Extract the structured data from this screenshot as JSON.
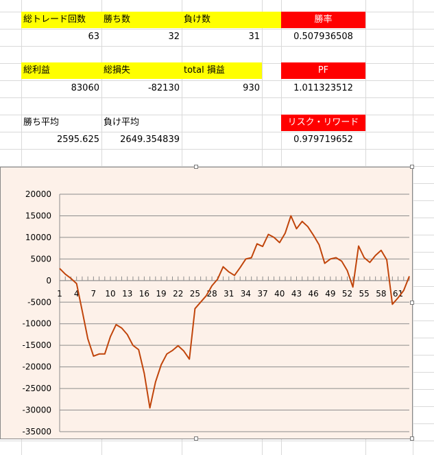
{
  "sheet": {
    "row1": {
      "total_trades_label": "総トレード回数",
      "wins_label": "勝ち数",
      "losses_label": "負け数",
      "win_rate_label": "勝率"
    },
    "row2": {
      "total_trades": "63",
      "wins": "32",
      "losses": "31",
      "win_rate": "0.507936508"
    },
    "row4": {
      "gross_profit_label": "総利益",
      "gross_loss_label": "総損失",
      "total_pl_label": "total 損益",
      "pf_label": "PF"
    },
    "row5": {
      "gross_profit": "83060",
      "gross_loss": "-82130",
      "total_pl": "930",
      "pf": "1.011323512"
    },
    "row7": {
      "avg_win_label": "勝ち平均",
      "avg_loss_label": "負け平均",
      "risk_reward_label": "リスク・リワード"
    },
    "row8": {
      "avg_win": "2595.625",
      "avg_loss": "2649.354839",
      "risk_reward": "0.979719652"
    },
    "colors": {
      "header_yellow": "#ffff00",
      "header_red": "#ff0000",
      "line": "#c0440a",
      "chart_bg": "#fdf1e9"
    }
  },
  "chart_data": {
    "type": "line",
    "title": "",
    "xlabel": "",
    "ylabel": "",
    "ylim": [
      -35000,
      20000
    ],
    "yticks": [
      20000,
      15000,
      10000,
      5000,
      0,
      -5000,
      -10000,
      -15000,
      -20000,
      -25000,
      -30000,
      -35000
    ],
    "xtick_labels": [
      "1",
      "4",
      "7",
      "10",
      "13",
      "16",
      "19",
      "22",
      "25",
      "28",
      "31",
      "34",
      "37",
      "40",
      "43",
      "46",
      "49",
      "52",
      "55",
      "58",
      "61"
    ],
    "x": [
      1,
      2,
      3,
      4,
      5,
      6,
      7,
      8,
      9,
      10,
      11,
      12,
      13,
      14,
      15,
      16,
      17,
      18,
      19,
      20,
      21,
      22,
      23,
      24,
      25,
      26,
      27,
      28,
      29,
      30,
      31,
      32,
      33,
      34,
      35,
      36,
      37,
      38,
      39,
      40,
      41,
      42,
      43,
      44,
      45,
      46,
      47,
      48,
      49,
      50,
      51,
      52,
      53,
      54,
      55,
      56,
      57,
      58,
      59,
      60,
      61,
      62,
      63
    ],
    "series": [
      {
        "values": [
          2800,
          1500,
          500,
          -700,
          -7000,
          -13500,
          -17500,
          -17000,
          -17000,
          -13000,
          -10200,
          -11000,
          -12500,
          -15000,
          -16000,
          -21500,
          -29500,
          -23500,
          -19500,
          -17000,
          -16200,
          -15100,
          -16300,
          -18200,
          -6500,
          -5000,
          -3500,
          -1200,
          300,
          3200,
          2000,
          1200,
          3000,
          5000,
          5300,
          8500,
          7900,
          10700,
          10000,
          8800,
          11000,
          15000,
          12000,
          13700,
          12500,
          10500,
          8300,
          4000,
          5000,
          5300,
          4500,
          2300,
          -1500,
          8000,
          5300,
          4200,
          5800,
          7000,
          4800,
          -5500,
          -4000,
          -2300,
          1000
        ]
      }
    ]
  }
}
